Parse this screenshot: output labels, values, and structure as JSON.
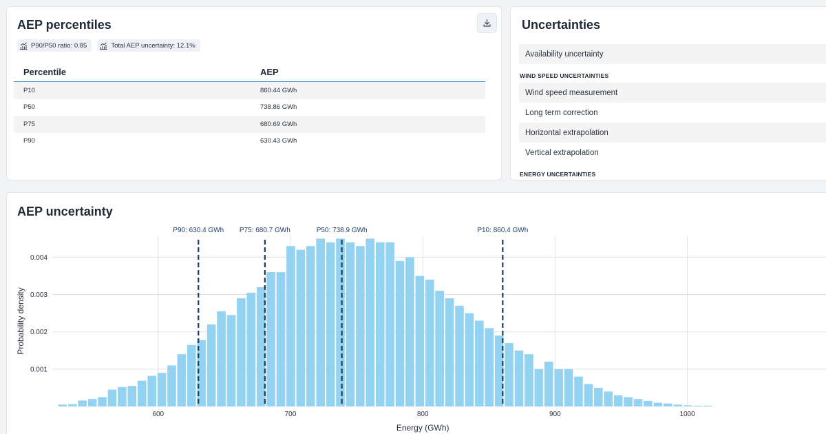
{
  "percentiles_card": {
    "title": "AEP percentiles",
    "download_icon": "download-icon",
    "chips": [
      {
        "icon": "chart-icon",
        "label": "P90/P50 ratio: 0.85"
      },
      {
        "icon": "chart-icon",
        "label": "Total AEP uncertainty: 12.1%"
      }
    ],
    "table": {
      "headers": [
        "Percentile",
        "AEP"
      ],
      "rows": [
        {
          "percentile": "P10",
          "aep": "860.44 GWh"
        },
        {
          "percentile": "P50",
          "aep": "738.86 GWh"
        },
        {
          "percentile": "P75",
          "aep": "680.69 GWh"
        },
        {
          "percentile": "P90",
          "aep": "630.43 GWh"
        }
      ]
    }
  },
  "uncertainties_card": {
    "title": "Uncertainties",
    "availability": "Availability uncertainty",
    "wind_section": "WIND SPEED UNCERTAINTIES",
    "wind_items": [
      "Wind speed measurement",
      "Long term correction",
      "Horizontal extrapolation",
      "Vertical extrapolation"
    ],
    "energy_section": "ENERGY UNCERTAINTIES"
  },
  "chart_card": {
    "title": "AEP uncertainty"
  },
  "chart_data": {
    "type": "bar",
    "title": "AEP uncertainty",
    "xlabel": "Energy (GWh)",
    "ylabel": "Probability density",
    "xlim": [
      520,
      1110
    ],
    "ylim": [
      0,
      0.00458
    ],
    "xticks": [
      600,
      700,
      800,
      900,
      1000
    ],
    "yticks": [
      0.001,
      0.002,
      0.003,
      0.004
    ],
    "ytick_labels": [
      "0.001",
      "0.002",
      "0.003",
      "0.004"
    ],
    "bar_color": "#93d3f1",
    "bin_start": 524,
    "bin_width": 7.5,
    "values": [
      5e-05,
      6e-05,
      0.00016,
      0.0002,
      0.00025,
      0.00045,
      0.00052,
      0.00055,
      0.00069,
      0.00082,
      0.0009,
      0.0011,
      0.0014,
      0.00165,
      0.00178,
      0.0022,
      0.00255,
      0.00245,
      0.0029,
      0.00305,
      0.0032,
      0.0036,
      0.0036,
      0.0043,
      0.0042,
      0.0043,
      0.0045,
      0.0044,
      0.0045,
      0.0044,
      0.0043,
      0.0045,
      0.0044,
      0.0044,
      0.0039,
      0.004,
      0.0035,
      0.0034,
      0.0031,
      0.0029,
      0.0027,
      0.0025,
      0.0023,
      0.0021,
      0.0019,
      0.0017,
      0.0015,
      0.0014,
      0.001,
      0.0012,
      0.001,
      0.001,
      0.0008,
      0.0006,
      0.0005,
      0.0004,
      0.0003,
      0.00025,
      0.0002,
      0.00015,
      0.0001,
      8e-05,
      5e-05,
      3e-05,
      2e-05,
      2e-05
    ],
    "percentile_lines": [
      {
        "value": 630.43,
        "label": "P90: 630.4 GWh"
      },
      {
        "value": 680.69,
        "label": "P75: 680.7 GWh"
      },
      {
        "value": 738.86,
        "label": "P50: 738.9 GWh"
      },
      {
        "value": 860.44,
        "label": "P10: 860.4 GWh"
      }
    ],
    "line_color": "#1e3a5f",
    "grid": true
  }
}
